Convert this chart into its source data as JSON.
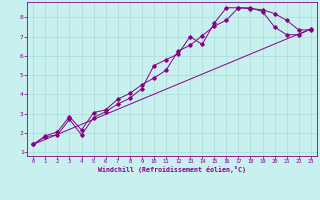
{
  "bg_color": "#c8f0ee",
  "grid_color": "#a8dcd8",
  "line_color": "#880088",
  "title": "Windchill (Refroidissement éolien,°C)",
  "xlim": [
    -0.5,
    23.5
  ],
  "ylim": [
    0.8,
    8.8
  ],
  "xticks": [
    0,
    1,
    2,
    3,
    4,
    5,
    6,
    7,
    8,
    9,
    10,
    11,
    12,
    13,
    14,
    15,
    16,
    17,
    18,
    19,
    20,
    21,
    22,
    23
  ],
  "yticks": [
    1,
    2,
    3,
    4,
    5,
    6,
    7,
    8
  ],
  "line1_x": [
    0,
    1,
    2,
    3,
    4,
    5,
    6,
    7,
    8,
    9,
    10,
    11,
    12,
    13,
    14,
    15,
    16,
    17,
    18,
    19,
    20,
    21,
    22,
    23
  ],
  "line1_y": [
    1.4,
    1.8,
    1.9,
    2.7,
    1.9,
    2.8,
    3.1,
    3.5,
    3.8,
    4.3,
    5.5,
    5.8,
    6.1,
    7.0,
    6.6,
    7.7,
    8.5,
    8.5,
    8.5,
    8.3,
    7.5,
    7.1,
    7.1,
    7.4
  ],
  "line2_x": [
    0,
    1,
    2,
    3,
    4,
    5,
    6,
    7,
    8,
    9,
    10,
    11,
    12,
    13,
    14,
    15,
    16,
    17,
    18,
    19,
    20,
    21,
    22,
    23
  ],
  "line2_y": [
    1.4,
    1.85,
    2.05,
    2.85,
    2.15,
    3.05,
    3.2,
    3.75,
    4.05,
    4.5,
    4.85,
    5.25,
    6.25,
    6.55,
    7.05,
    7.55,
    7.85,
    8.5,
    8.45,
    8.4,
    8.2,
    7.85,
    7.35,
    7.35
  ],
  "line3_x": [
    0,
    23
  ],
  "line3_y": [
    1.4,
    7.4
  ],
  "figsize": [
    3.2,
    2.0
  ],
  "dpi": 100
}
